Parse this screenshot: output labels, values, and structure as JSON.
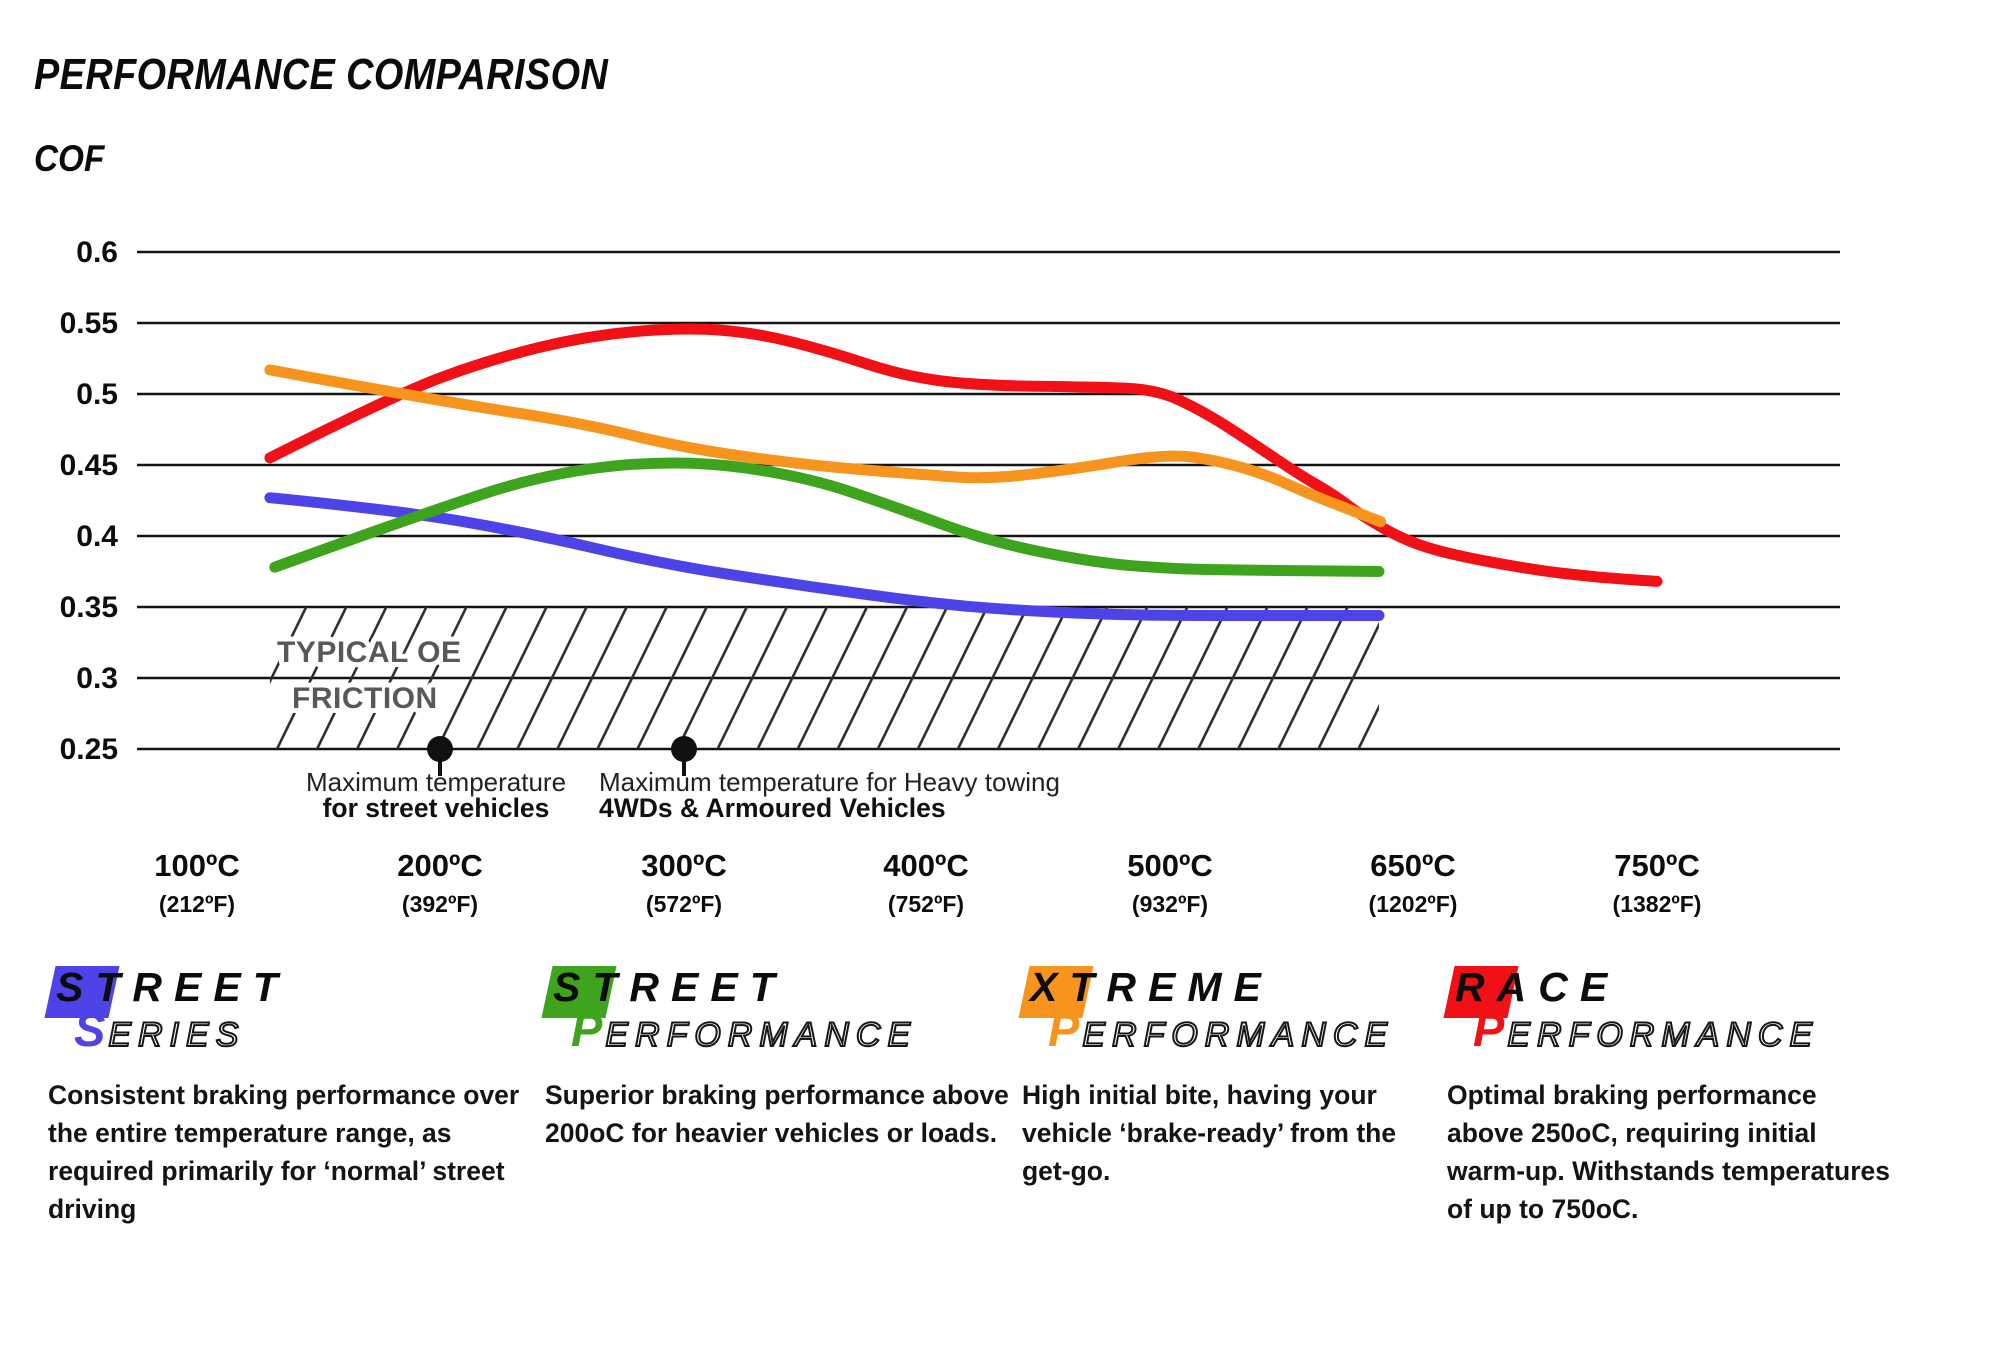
{
  "header": {
    "title": "PERFORMANCE COMPARISON",
    "axis_label": "COF"
  },
  "chart_data": {
    "type": "line",
    "title": "PERFORMANCE COMPARISON",
    "ylabel": "COF",
    "ylim": [
      0.25,
      0.6
    ],
    "grid": "horizontal",
    "y_ticks": [
      0.6,
      0.55,
      0.5,
      0.45,
      0.4,
      0.35,
      0.3,
      0.25
    ],
    "x_ticks": [
      {
        "c": "100ºC",
        "f": "(212ºF)",
        "t": 100
      },
      {
        "c": "200ºC",
        "f": "(392ºF)",
        "t": 200
      },
      {
        "c": "300ºC",
        "f": "(572ºF)",
        "t": 300
      },
      {
        "c": "400ºC",
        "f": "(752ºF)",
        "t": 400
      },
      {
        "c": "500ºC",
        "f": "(932ºF)",
        "t": 500
      },
      {
        "c": "650ºC",
        "f": "(1202ºF)",
        "t": 650
      },
      {
        "c": "750ºC",
        "f": "(1382ºF)",
        "t": 750
      }
    ],
    "series": [
      {
        "name": "Street Series",
        "color": "#4E43E6",
        "points": [
          [
            130,
            0.427
          ],
          [
            183,
            0.418
          ],
          [
            237,
            0.402
          ],
          [
            292,
            0.38
          ],
          [
            345,
            0.366
          ],
          [
            400,
            0.353
          ],
          [
            434,
            0.348
          ],
          [
            470,
            0.345
          ],
          [
            500,
            0.344
          ],
          [
            629,
            0.344
          ]
        ]
      },
      {
        "name": "Street Performance",
        "color": "#3FA41D",
        "points": [
          [
            132,
            0.378
          ],
          [
            190,
            0.414
          ],
          [
            245,
            0.445
          ],
          [
            300,
            0.454
          ],
          [
            350,
            0.442
          ],
          [
            388,
            0.42
          ],
          [
            426,
            0.396
          ],
          [
            470,
            0.381
          ],
          [
            500,
            0.377
          ],
          [
            540,
            0.376
          ],
          [
            629,
            0.375
          ]
        ]
      },
      {
        "name": "Xtreme Performance",
        "color": "#F7941E",
        "points": [
          [
            130,
            0.517
          ],
          [
            200,
            0.495
          ],
          [
            257,
            0.48
          ],
          [
            300,
            0.462
          ],
          [
            350,
            0.45
          ],
          [
            400,
            0.443
          ],
          [
            426,
            0.44
          ],
          [
            460,
            0.447
          ],
          [
            499,
            0.458
          ],
          [
            530,
            0.453
          ],
          [
            560,
            0.443
          ],
          [
            585,
            0.43
          ],
          [
            610,
            0.419
          ],
          [
            630,
            0.41
          ]
        ]
      },
      {
        "name": "Race Performance",
        "color": "#F01015",
        "points": [
          [
            130,
            0.455
          ],
          [
            182,
            0.5
          ],
          [
            220,
            0.524
          ],
          [
            260,
            0.541
          ],
          [
            300,
            0.547
          ],
          [
            330,
            0.543
          ],
          [
            360,
            0.53
          ],
          [
            390,
            0.513
          ],
          [
            420,
            0.506
          ],
          [
            470,
            0.505
          ],
          [
            495,
            0.503
          ],
          [
            520,
            0.488
          ],
          [
            545,
            0.47
          ],
          [
            580,
            0.443
          ],
          [
            600,
            0.43
          ],
          [
            620,
            0.413
          ],
          [
            645,
            0.397
          ],
          [
            665,
            0.387
          ],
          [
            700,
            0.376
          ],
          [
            725,
            0.371
          ],
          [
            751,
            0.368
          ]
        ]
      }
    ],
    "oe_band": {
      "label_line1": "TYPICAL OE",
      "label_line2": "FRICTION",
      "t_start": 130,
      "t_end": 629,
      "cof_top": 0.35,
      "cof_bottom": 0.25
    },
    "annotations": [
      {
        "t": 200,
        "cof": 0.25,
        "align": "center",
        "line1": "Maximum temperature",
        "line2": "for street vehicles"
      },
      {
        "t": 300,
        "cof": 0.25,
        "align": "left",
        "line1": "Maximum temperature for Heavy towing",
        "line2": "4WDs & Armoured Vehicles"
      }
    ]
  },
  "legend": {
    "items": [
      {
        "word1": "STREET",
        "initial2": "S",
        "rest2": "ERIES",
        "color": "#4E43E6",
        "description": "Consistent braking performance over the entire temperature range, as required primarily for ‘normal’ street driving"
      },
      {
        "word1": "STREET",
        "initial2": "P",
        "rest2": "ERFORMANCE",
        "color": "#3FA41D",
        "description": "Superior braking performance above 200oC for heavier vehicles or loads."
      },
      {
        "word1": "XTREME",
        "initial2": "P",
        "rest2": "ERFORMANCE",
        "color": "#F7941E",
        "description": "High initial bite, having your vehicle ‘brake-ready’ from the get-go."
      },
      {
        "word1": "RACE",
        "initial2": "P",
        "rest2": "ERFORMANCE",
        "color": "#F01015",
        "description": "Optimal braking performance above 250oC, requiring initial warm-up. Withstands temperatures of up to 750oC."
      }
    ]
  }
}
